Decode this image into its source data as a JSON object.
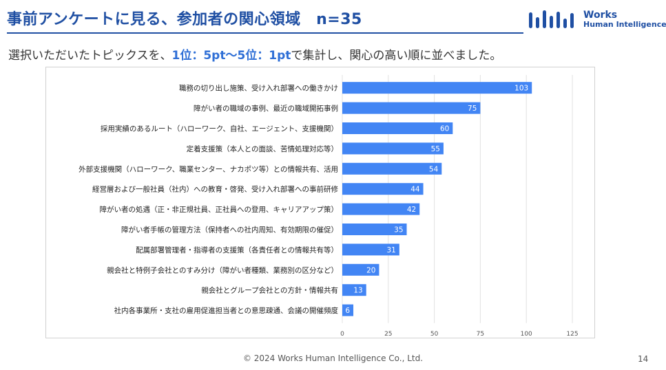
{
  "slide": {
    "title": "事前アンケートに見る、参加者の関心領域　n=35",
    "subtitle_pre": "選択いただいたトピックスを、",
    "subtitle_highlight": "1位：5pt〜5位：1pt",
    "subtitle_post": "で集計し、関心の高い順に並べました。",
    "footer": "© 2024 Works Human Intelligence Co., Ltd.",
    "page_number": "14"
  },
  "logo": {
    "line1": "Works",
    "line2": "Human Intelligence"
  },
  "colors": {
    "brand": "#1f4fa3",
    "highlight": "#2f6fd6",
    "bar": "#4285f4"
  },
  "chart_data": {
    "type": "bar",
    "orientation": "horizontal",
    "categories": [
      "職務の切り出し施策、受け入れ部署への働きかけ",
      "障がい者の職域の事例、最近の職域開拓事例",
      "採用実績のあるルート（ハローワーク、自社、エージェント、支援機関）",
      "定着支援策（本人との面談、苦情処理対応等）",
      "外部支援機関（ハローワーク、職業センター、ナカポツ等）との情報共有、活用",
      "経営層および一般社員（社内）への教育・啓発、受け入れ部署への事前研修",
      "障がい者の処遇（正・非正規社員、正社員への登用、キャリアアップ策）",
      "障がい者手帳の管理方法（保持者への社内周知、有効期限の催促）",
      "配属部署管理者・指導者の支援策（各責任者との情報共有等）",
      "親会社と特例子会社とのすみ分け（障がい者種類、業務別の区分など）",
      "親会社とグループ会社との方針・情報共有",
      "社内各事業所・支社の雇用促進担当者との意思疎通、会議の開催頻度"
    ],
    "values": [
      103,
      75,
      60,
      55,
      54,
      44,
      42,
      35,
      31,
      20,
      13,
      6
    ],
    "xlim": [
      0,
      125
    ],
    "xticks": [
      0,
      25,
      50,
      75,
      100,
      125
    ],
    "grid": "vertical",
    "data_labels": "inside-end"
  }
}
